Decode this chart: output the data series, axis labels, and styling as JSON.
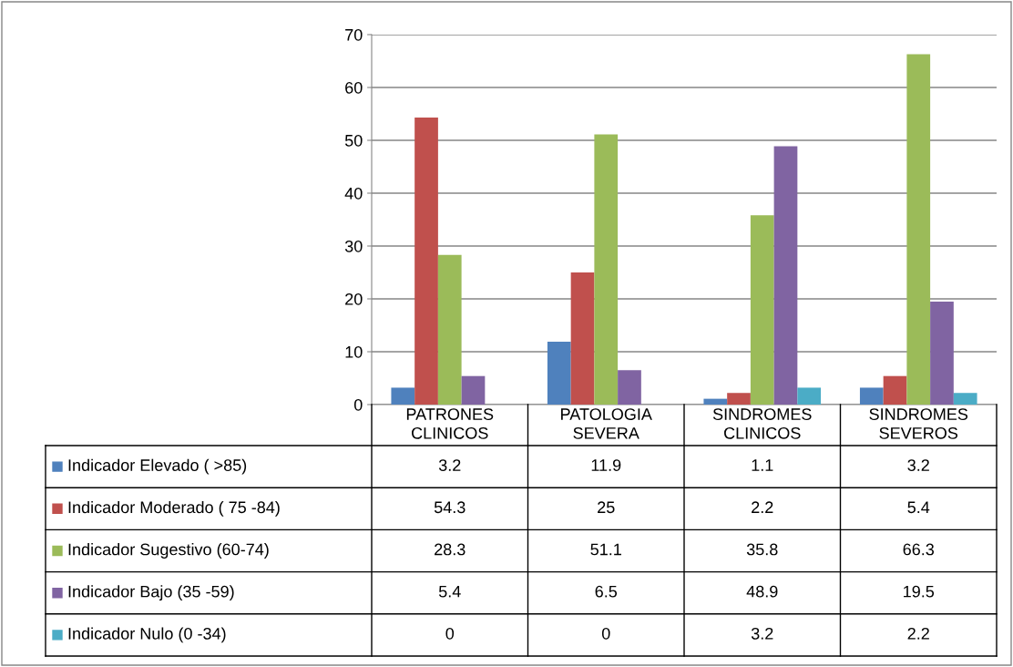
{
  "chart_data": {
    "type": "bar",
    "categories": [
      "PATRONES\nCLINICOS",
      "PATOLOGIA\nSEVERA",
      "SINDROMES\nCLINICOS",
      "SINDROMES\nSEVEROS"
    ],
    "series": [
      {
        "name": "Indicador Elevado ( >85)",
        "color": "#4f81bd",
        "values": [
          3.2,
          11.9,
          1.1,
          3.2
        ]
      },
      {
        "name": "Indicador Moderado ( 75 -84)",
        "color": "#c0504d",
        "values": [
          54.3,
          25,
          2.2,
          5.4
        ]
      },
      {
        "name": "Indicador Sugestivo (60-74)",
        "color": "#9bbb59",
        "values": [
          28.3,
          51.1,
          35.8,
          66.3
        ]
      },
      {
        "name": "Indicador Bajo (35 -59)",
        "color": "#8064a2",
        "values": [
          5.4,
          6.5,
          48.9,
          19.5
        ]
      },
      {
        "name": "Indicador Nulo (0 -34)",
        "color": "#4bacc6",
        "values": [
          0,
          0,
          3.2,
          2.2
        ]
      }
    ],
    "ylim": [
      0,
      70
    ],
    "yticks": [
      0,
      10,
      20,
      30,
      40,
      50,
      60,
      70
    ],
    "grid": "y",
    "data_labels": true,
    "legend": "bottom"
  }
}
